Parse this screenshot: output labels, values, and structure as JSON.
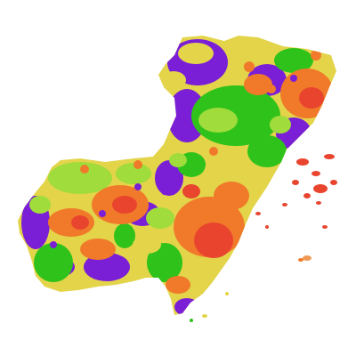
{
  "map": {
    "type": "choropleth-raster",
    "colors": {
      "purple": "#7a1fd6",
      "yellow": "#e3d44a",
      "light_green": "#9fdc3c",
      "green": "#2fc21a",
      "orange": "#f07a2a",
      "red": "#e8442e",
      "salmon": "#ee9a54",
      "background": "#ffffff"
    }
  }
}
